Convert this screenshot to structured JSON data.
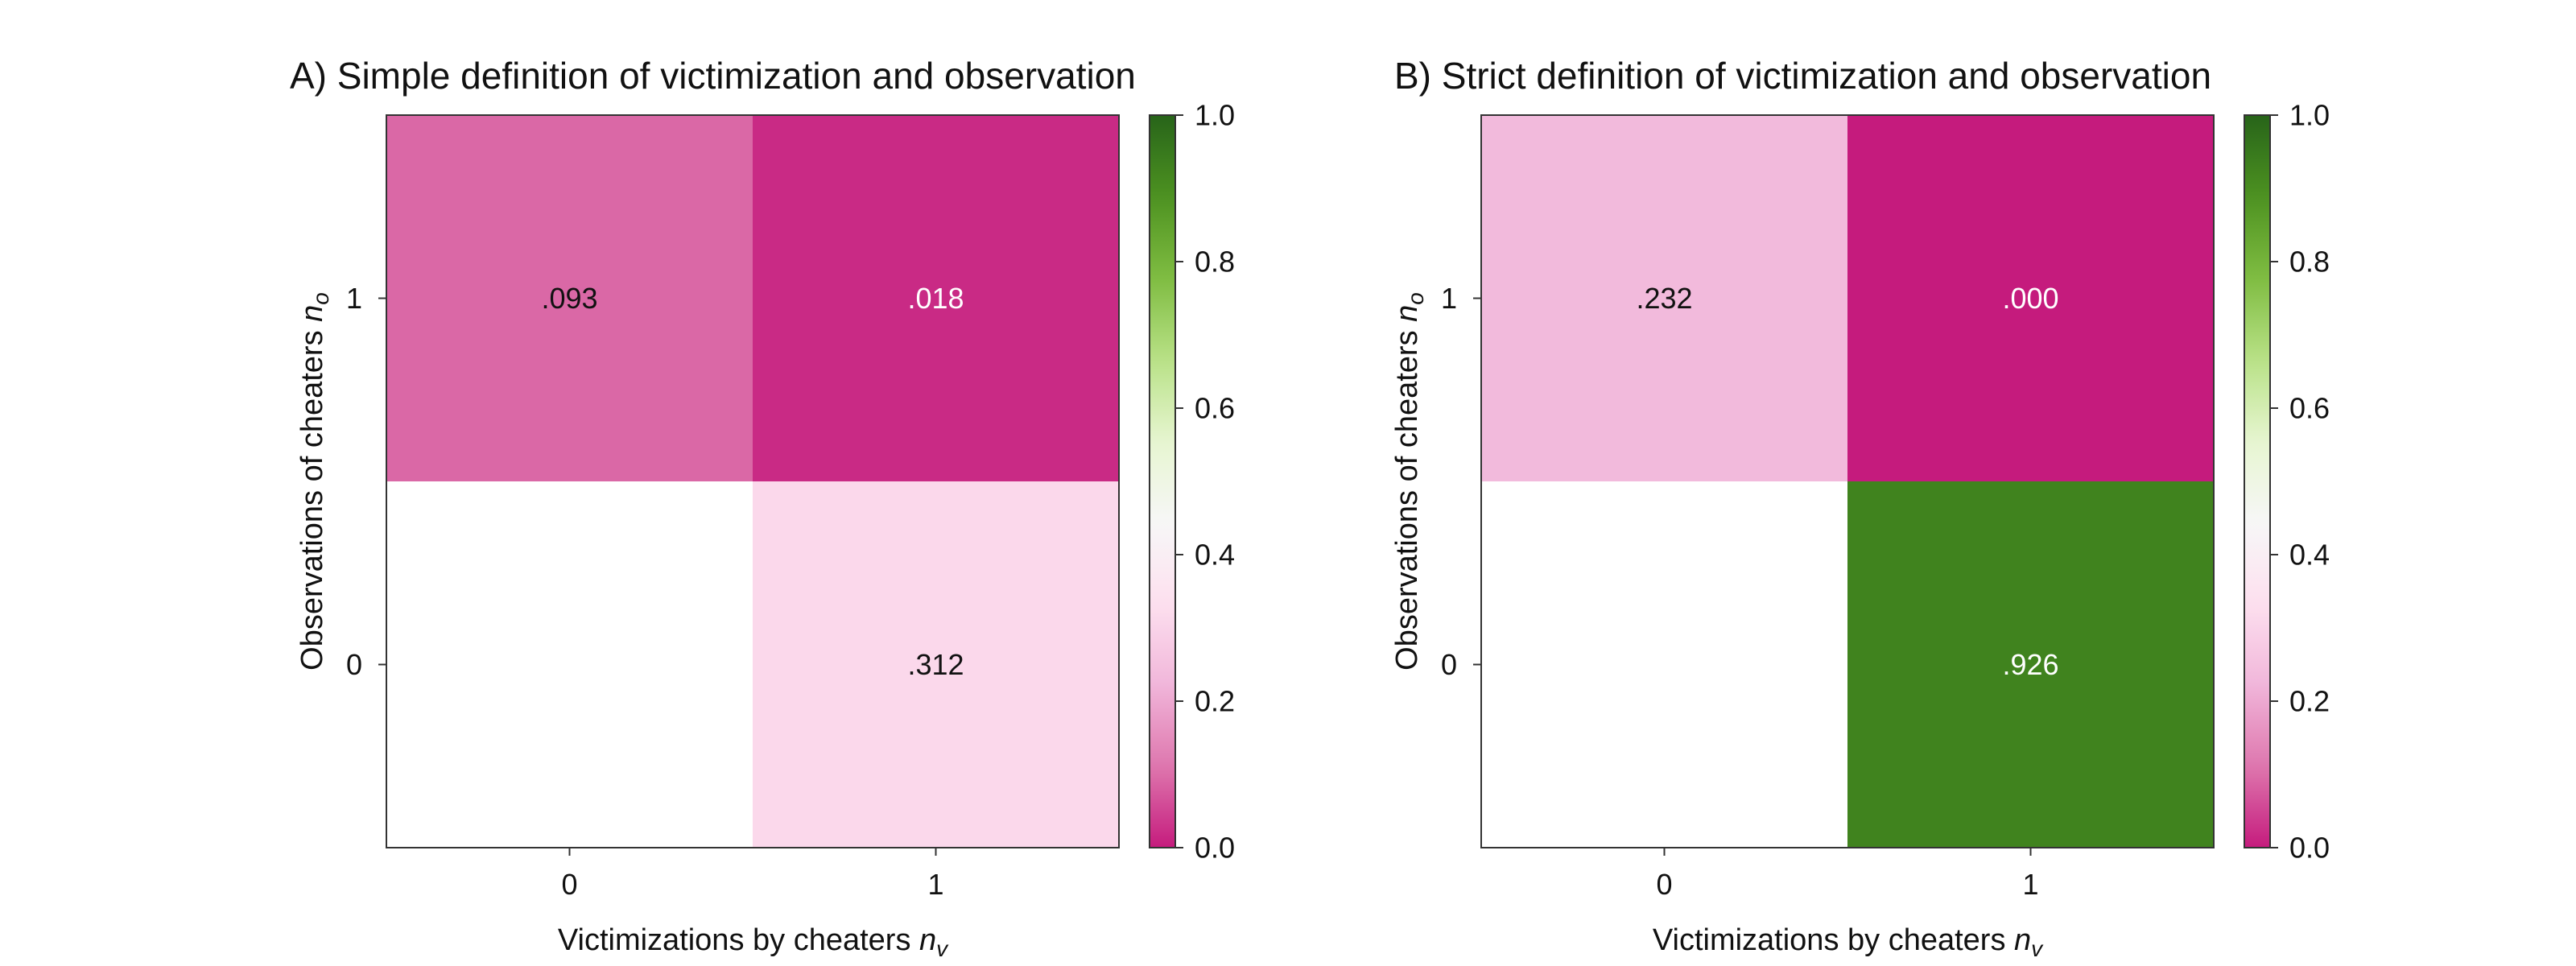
{
  "chart_data": [
    {
      "type": "heatmap",
      "title": "A) Simple definition of victimization and observation",
      "xlabel": "Victimizations by cheaters",
      "xlabel_symbol": "n",
      "xlabel_subscript": "v",
      "ylabel": "Observations of cheaters",
      "ylabel_symbol": "n",
      "ylabel_subscript": "o",
      "x_categories": [
        "0",
        "1"
      ],
      "y_categories": [
        "0",
        "1"
      ],
      "cells": [
        {
          "x": "0",
          "y": "1",
          "value": 0.093,
          "label": ".093"
        },
        {
          "x": "1",
          "y": "1",
          "value": 0.018,
          "label": ".018"
        },
        {
          "x": "0",
          "y": "0",
          "value": null,
          "label": ""
        },
        {
          "x": "1",
          "y": "0",
          "value": 0.312,
          "label": ".312"
        }
      ],
      "colorbar": {
        "range": [
          0.0,
          1.0
        ],
        "ticks": [
          "0.0",
          "0.2",
          "0.4",
          "0.6",
          "0.8",
          "1.0"
        ]
      }
    },
    {
      "type": "heatmap",
      "title": "B) Strict definition of victimization and observation",
      "xlabel": "Victimizations by cheaters",
      "xlabel_symbol": "n",
      "xlabel_subscript": "v",
      "ylabel": "Observations of cheaters",
      "ylabel_symbol": "n",
      "ylabel_subscript": "o",
      "x_categories": [
        "0",
        "1"
      ],
      "y_categories": [
        "0",
        "1"
      ],
      "cells": [
        {
          "x": "0",
          "y": "1",
          "value": 0.232,
          "label": ".232"
        },
        {
          "x": "1",
          "y": "1",
          "value": 0.0,
          "label": ".000"
        },
        {
          "x": "0",
          "y": "0",
          "value": null,
          "label": ""
        },
        {
          "x": "1",
          "y": "0",
          "value": 0.926,
          "label": ".926"
        }
      ],
      "colorbar": {
        "range": [
          0.0,
          1.0
        ],
        "ticks": [
          "0.0",
          "0.2",
          "0.4",
          "0.6",
          "0.8",
          "1.0"
        ]
      }
    }
  ],
  "colors": {
    "colormap": [
      "#c51b7d",
      "#de77ae",
      "#f1b6da",
      "#fde0ef",
      "#f7f7f7",
      "#e6f5d0",
      "#b8e186",
      "#7fbc41",
      "#4d9221",
      "#276419"
    ],
    "empty_cell": "#ffffff",
    "frame": "#333333",
    "text_dark": "#111111",
    "text_light": "#ffffff"
  }
}
